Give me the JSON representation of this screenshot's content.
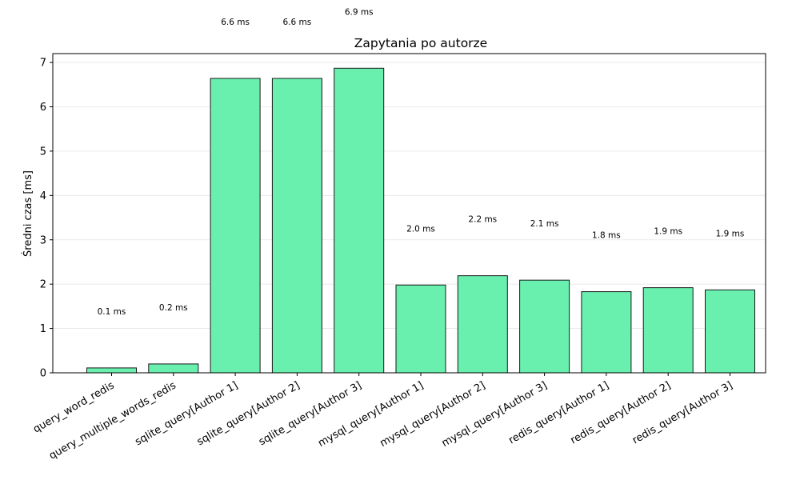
{
  "chart_data": {
    "type": "bar",
    "title": "Zapytania po autorze",
    "xlabel": "",
    "ylabel": "Średni czas [ms]",
    "ylim": [
      0,
      7.2
    ],
    "yticks": [
      0,
      1,
      2,
      3,
      4,
      5,
      6,
      7
    ],
    "grid": "y-axis",
    "bar_color": "#69f0ae",
    "bar_edge_color": "#1a1a1a",
    "categories": [
      "query_word_redis",
      "query_multiple_words_redis",
      "sqlite_query[Author 1]",
      "sqlite_query[Author 2]",
      "sqlite_query[Author 3]",
      "mysql_query[Author 1]",
      "mysql_query[Author 2]",
      "mysql_query[Author 3]",
      "redis_query[Author 1]",
      "redis_query[Author 2]",
      "redis_query[Author 3]"
    ],
    "values": [
      0.11,
      0.2,
      6.64,
      6.64,
      6.87,
      1.98,
      2.19,
      2.09,
      1.83,
      1.92,
      1.87
    ],
    "value_labels": [
      "0.1 ms",
      "0.2 ms",
      "6.6 ms",
      "6.6 ms",
      "6.9 ms",
      "2.0 ms",
      "2.2 ms",
      "2.1 ms",
      "1.8 ms",
      "1.9 ms",
      "1.9 ms"
    ]
  }
}
